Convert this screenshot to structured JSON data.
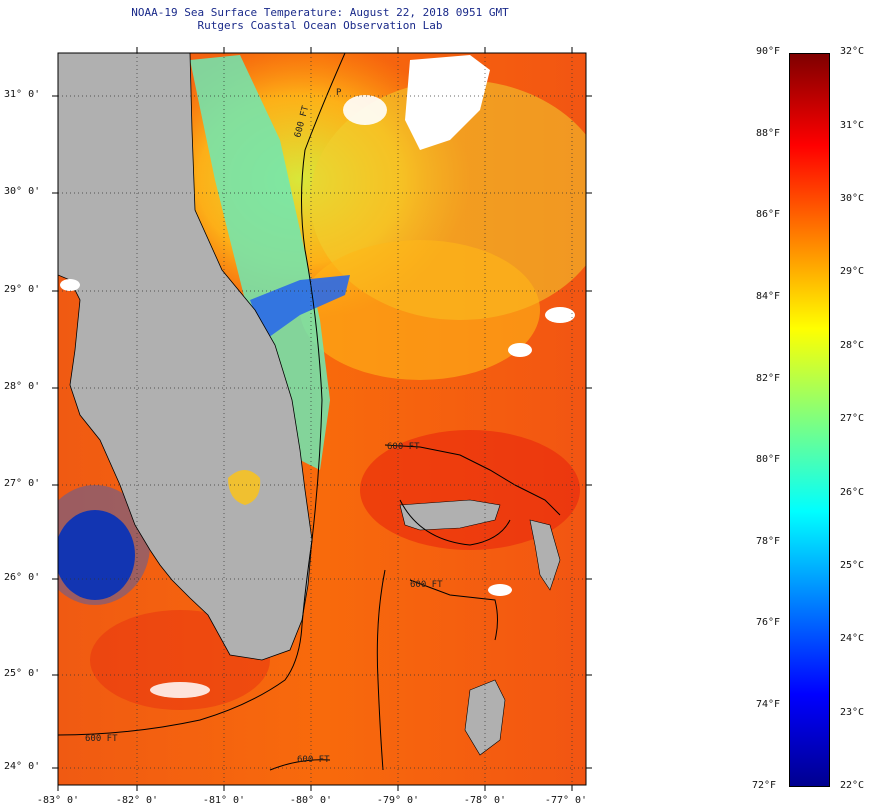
{
  "title": {
    "line1": "NOAA-19 Sea Surface Temperature:  August 22, 2018 0951 GMT",
    "line2": "Rutgers Coastal Ocean Observation Lab"
  },
  "map": {
    "lat_labels": [
      "31° 0'",
      "30° 0'",
      "29° 0'",
      "28° 0'",
      "27° 0'",
      "26° 0'",
      "25° 0'",
      "24° 0'"
    ],
    "lon_labels": [
      "-83° 0'",
      "-82° 0'",
      "-81° 0'",
      "-80° 0'",
      "-79° 0'",
      "-78° 0'",
      "-77° 0'"
    ],
    "contour_label": "600 FT",
    "contour_label_short": "P",
    "colors": {
      "land": "#b0b0b0",
      "cloud": "#ffffff",
      "frame": "#000000"
    }
  },
  "colorbar": {
    "fahrenheit_labels": [
      "90°F",
      "88°F",
      "86°F",
      "84°F",
      "82°F",
      "80°F",
      "78°F",
      "76°F",
      "74°F",
      "72°F"
    ],
    "celsius_labels": [
      "32°C",
      "31°C",
      "30°C",
      "29°C",
      "28°C",
      "27°C",
      "26°C",
      "25°C",
      "24°C",
      "23°C",
      "22°C"
    ],
    "range_f": [
      72,
      90
    ],
    "range_c": [
      22,
      32
    ],
    "colormap": "jet"
  }
}
